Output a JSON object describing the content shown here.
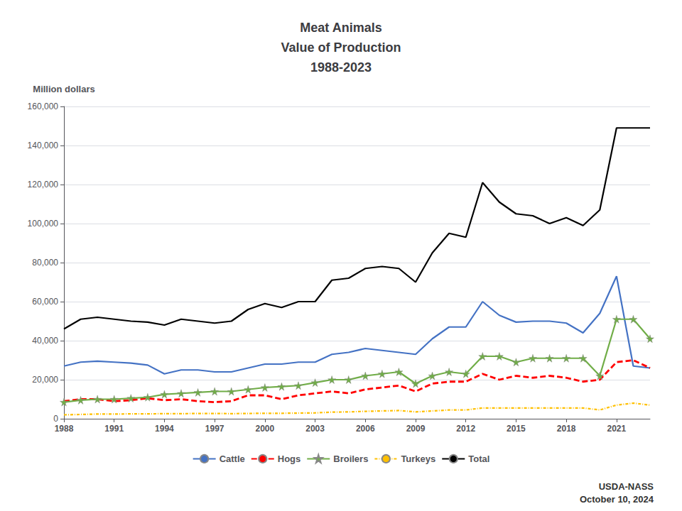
{
  "chart_data": {
    "type": "line",
    "title": [
      "Meat Animals",
      "Value of Production",
      "1988-2023"
    ],
    "ylabel": "Million dollars",
    "annotations": [
      "USDA-NASS",
      "October 10, 2024"
    ],
    "x": [
      1988,
      1989,
      1990,
      1991,
      1992,
      1993,
      1994,
      1995,
      1996,
      1997,
      1998,
      1999,
      2000,
      2001,
      2002,
      2003,
      2004,
      2005,
      2006,
      2007,
      2008,
      2009,
      2010,
      2011,
      2012,
      2013,
      2014,
      2015,
      2016,
      2017,
      2018,
      2019,
      2020,
      2021,
      2022,
      2023
    ],
    "series": [
      {
        "name": "Cattle",
        "color": "#4472C4",
        "line_style": "solid",
        "values": [
          27000,
          29000,
          29500,
          29000,
          28500,
          27500,
          23000,
          25000,
          25000,
          24000,
          24000,
          26000,
          28000,
          28000,
          29000,
          29000,
          33000,
          34000,
          36000,
          35000,
          34000,
          33000,
          41000,
          47000,
          47000,
          60000,
          53000,
          49500,
          50000,
          50000,
          49000,
          44000,
          54000,
          73000,
          27000,
          26000
        ]
      },
      {
        "name": "Hogs",
        "color": "#FF0000",
        "line_style": "dashed",
        "values": [
          9000,
          10000,
          10000,
          9000,
          9500,
          10500,
          9500,
          10000,
          9000,
          8500,
          9000,
          12000,
          12000,
          10000,
          12000,
          13000,
          14000,
          13000,
          15000,
          16000,
          17000,
          14000,
          18000,
          19000,
          19000,
          23000,
          20000,
          22000,
          21000,
          22000,
          21000,
          19000,
          20000,
          29000,
          30000,
          26000
        ]
      },
      {
        "name": "Broilers",
        "color": "#70AD47",
        "line_style": "solid",
        "marker": "star",
        "values": [
          8500,
          9500,
          10000,
          10000,
          10500,
          11000,
          12500,
          13000,
          13500,
          14000,
          14000,
          15000,
          16000,
          16500,
          17000,
          18500,
          20000,
          20000,
          22000,
          23000,
          24000,
          18000,
          22000,
          24000,
          23000,
          32000,
          32000,
          29000,
          31000,
          31000,
          31000,
          31000,
          22000,
          51000,
          51000,
          41000
        ]
      },
      {
        "name": "Turkeys",
        "color": "#FFC000",
        "line_style": "dashdot",
        "values": [
          2000,
          2200,
          2400,
          2400,
          2500,
          2500,
          2600,
          2600,
          2700,
          2700,
          2600,
          2700,
          2800,
          2800,
          2900,
          3000,
          3400,
          3500,
          3800,
          4000,
          4200,
          3500,
          4000,
          4500,
          4500,
          5500,
          5500,
          5500,
          5500,
          5500,
          5500,
          5500,
          4500,
          7000,
          8000,
          7000
        ]
      },
      {
        "name": "Total",
        "color": "#000000",
        "line_style": "solid",
        "values": [
          46000,
          51000,
          52000,
          51000,
          50000,
          49500,
          48000,
          51000,
          50000,
          49000,
          50000,
          56000,
          59000,
          57000,
          60000,
          60000,
          71000,
          72000,
          77000,
          78000,
          77000,
          70000,
          85000,
          95000,
          93000,
          121000,
          111000,
          105000,
          104000,
          100000,
          103000,
          99000,
          107000,
          149000,
          149000,
          149000
        ]
      }
    ],
    "xlim": [
      1988,
      2023
    ],
    "xticks": [
      1988,
      1991,
      1994,
      1997,
      2000,
      2003,
      2006,
      2009,
      2012,
      2015,
      2018,
      2021
    ],
    "ylim": [
      0,
      160000
    ],
    "yticks": [
      0,
      {
        "value": 20000,
        "label": "20,000"
      },
      {
        "value": 40000,
        "label": "40,000"
      },
      {
        "value": 60000,
        "label": "60,000"
      },
      {
        "value": 80000,
        "label": "80,000"
      },
      {
        "value": 100000,
        "label": "100,000"
      },
      {
        "value": 120000,
        "label": "120,000"
      },
      {
        "value": 140000,
        "label": "140,000"
      },
      {
        "value": 160000,
        "label": "160,000"
      }
    ],
    "grid": true,
    "legend": "bottom"
  }
}
